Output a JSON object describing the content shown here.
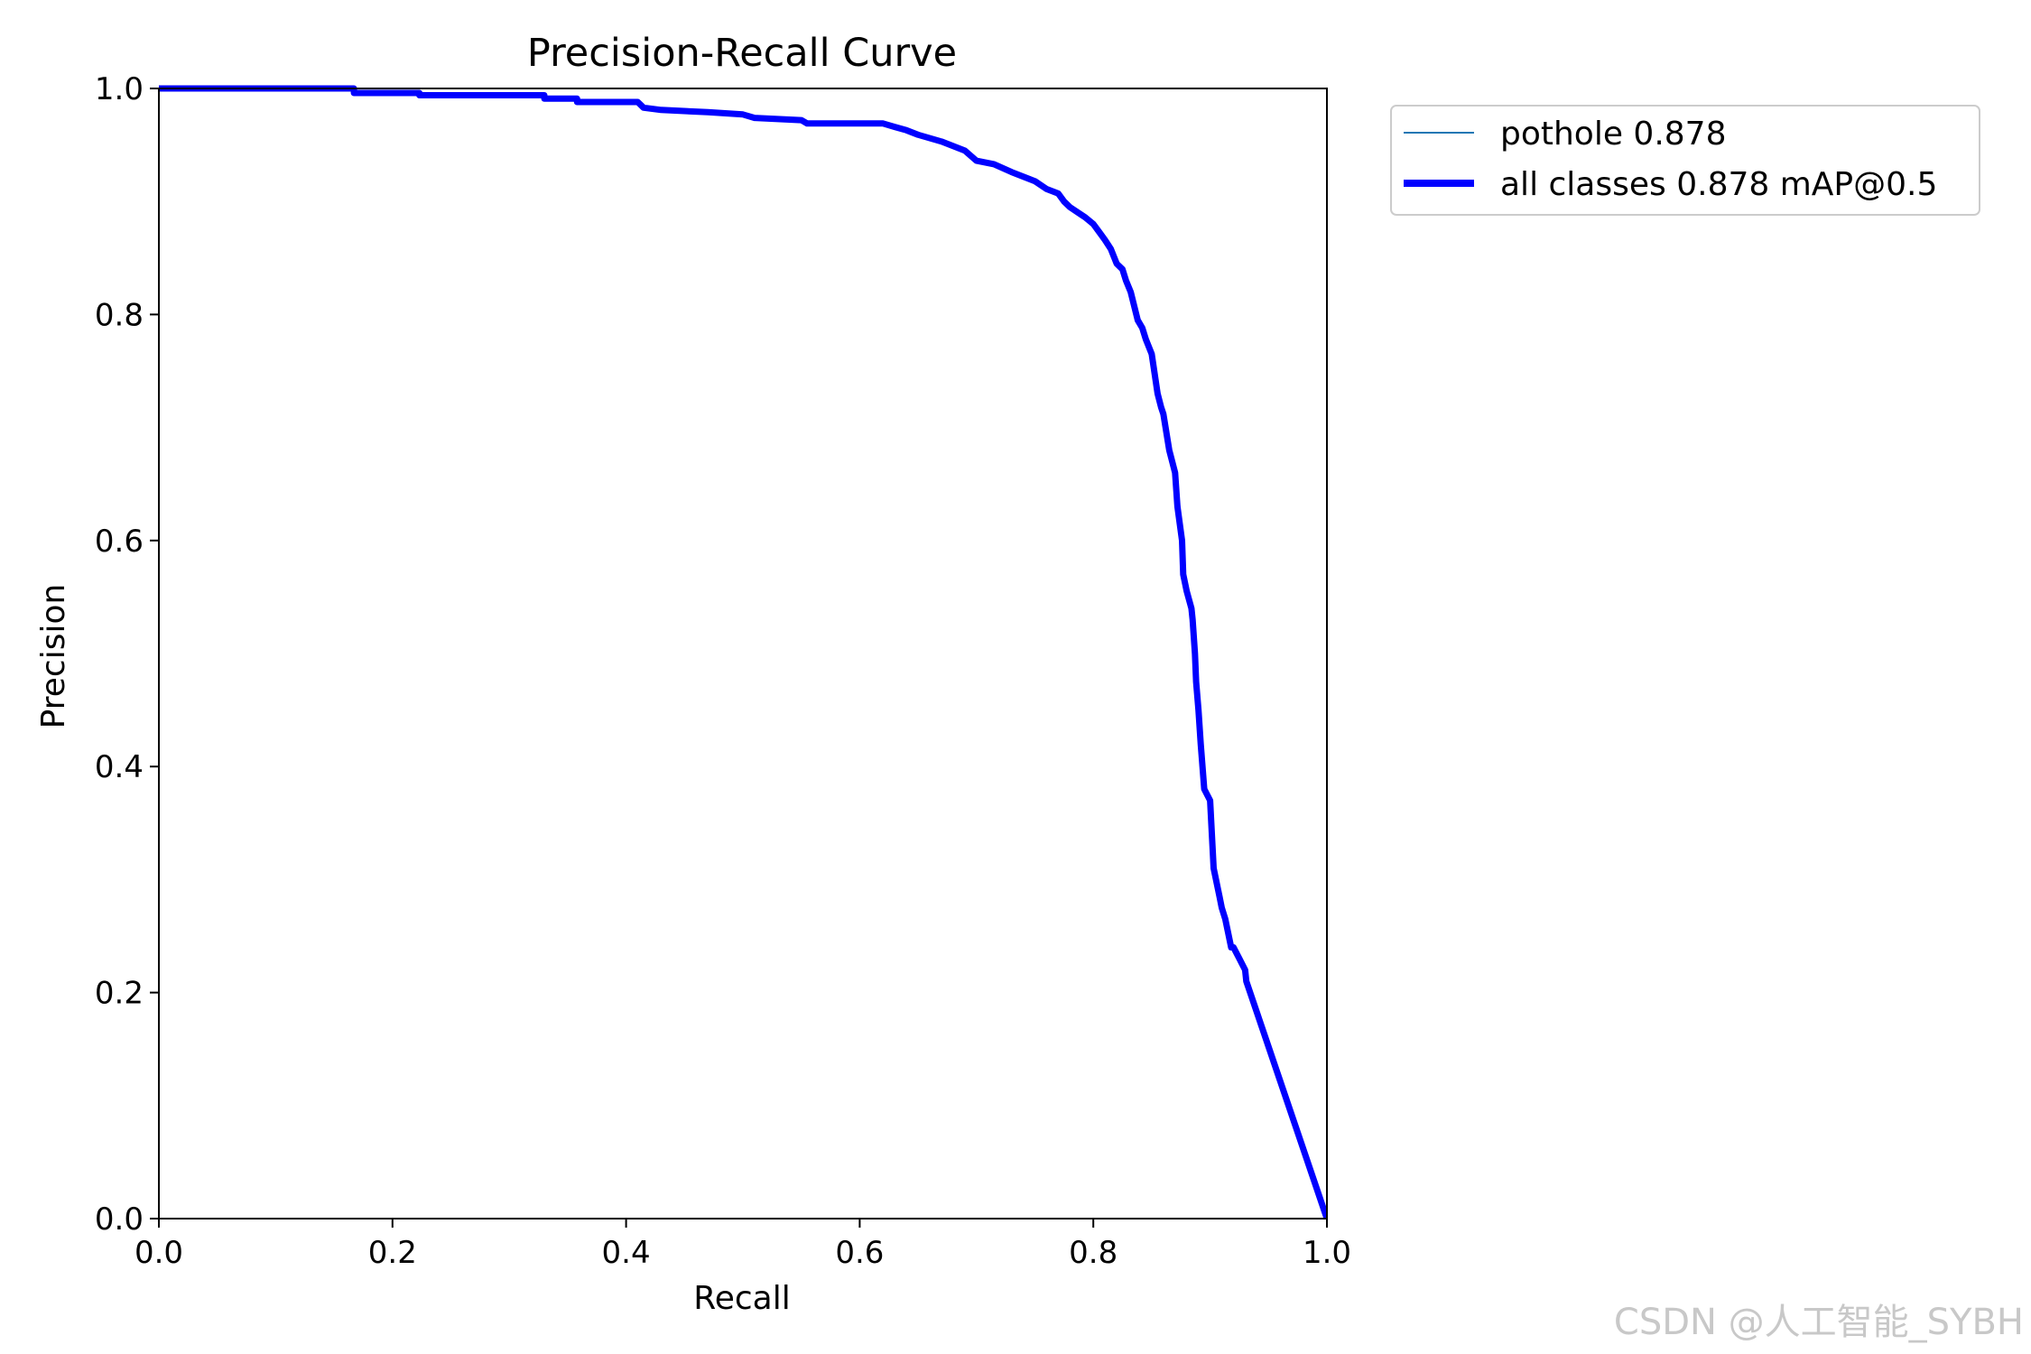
{
  "chart_data": {
    "type": "line",
    "title": "Precision-Recall Curve",
    "xlabel": "Recall",
    "ylabel": "Precision",
    "xlim": [
      0,
      1
    ],
    "ylim": [
      0,
      1
    ],
    "xticks": [
      "0.0",
      "0.2",
      "0.4",
      "0.6",
      "0.8",
      "1.0"
    ],
    "yticks": [
      "0.0",
      "0.2",
      "0.4",
      "0.6",
      "0.8",
      "1.0"
    ],
    "grid": false,
    "legend": {
      "position": "outside-upper-right",
      "entries": [
        {
          "label": "pothole 0.878",
          "color": "#1f77b4",
          "style": "thin"
        },
        {
          "label": "all classes 0.878 mAP@0.5",
          "color": "#0000ff",
          "style": "thick"
        }
      ]
    },
    "series": [
      {
        "name": "all classes 0.878 mAP@0.5",
        "color": "#0000ff",
        "x": [
          0.0,
          0.167,
          0.167,
          0.223,
          0.223,
          0.33,
          0.33,
          0.358,
          0.358,
          0.41,
          0.415,
          0.43,
          0.47,
          0.5,
          0.51,
          0.55,
          0.555,
          0.62,
          0.63,
          0.64,
          0.65,
          0.67,
          0.69,
          0.7,
          0.715,
          0.73,
          0.75,
          0.76,
          0.77,
          0.775,
          0.78,
          0.79,
          0.793,
          0.8,
          0.805,
          0.81,
          0.815,
          0.82,
          0.825,
          0.828,
          0.832,
          0.838,
          0.842,
          0.845,
          0.85,
          0.855,
          0.858,
          0.86,
          0.865,
          0.87,
          0.872,
          0.876,
          0.877,
          0.88,
          0.884,
          0.885,
          0.887,
          0.888,
          0.89,
          0.892,
          0.895,
          0.9,
          0.902,
          0.903,
          0.905,
          0.906,
          0.908,
          0.91,
          0.913,
          0.915,
          0.918,
          0.92,
          0.925,
          0.93,
          0.931,
          1.0
        ],
        "y": [
          1.0,
          1.0,
          0.996,
          0.996,
          0.994,
          0.994,
          0.991,
          0.991,
          0.988,
          0.988,
          0.983,
          0.981,
          0.979,
          0.977,
          0.974,
          0.972,
          0.969,
          0.969,
          0.966,
          0.963,
          0.959,
          0.953,
          0.945,
          0.936,
          0.933,
          0.926,
          0.918,
          0.911,
          0.907,
          0.9,
          0.895,
          0.888,
          0.886,
          0.88,
          0.873,
          0.866,
          0.858,
          0.845,
          0.84,
          0.83,
          0.82,
          0.795,
          0.788,
          0.778,
          0.765,
          0.73,
          0.718,
          0.712,
          0.68,
          0.66,
          0.63,
          0.6,
          0.57,
          0.555,
          0.54,
          0.53,
          0.5,
          0.475,
          0.45,
          0.42,
          0.38,
          0.37,
          0.33,
          0.31,
          0.3,
          0.295,
          0.285,
          0.275,
          0.265,
          0.255,
          0.24,
          0.24,
          0.23,
          0.22,
          0.21,
          0.0
        ]
      }
    ]
  },
  "watermark": "CSDN @人工智能_SYBH"
}
